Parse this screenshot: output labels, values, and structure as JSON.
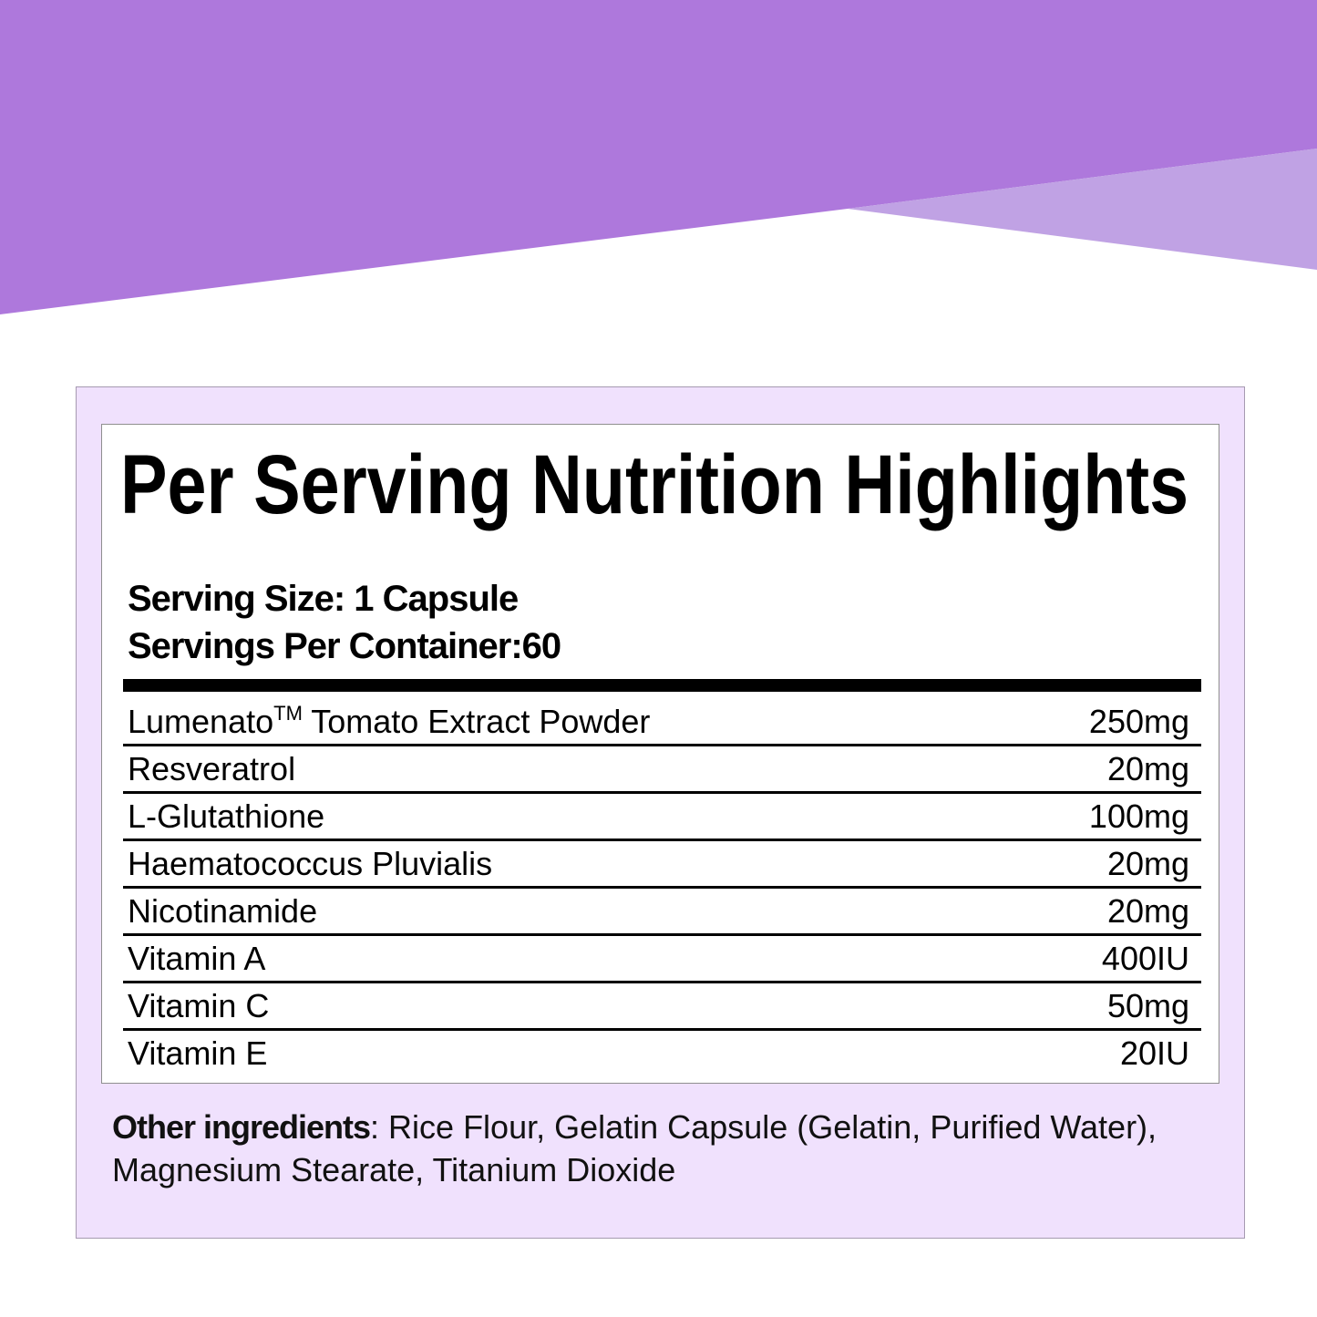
{
  "colors": {
    "banner_primary": "#ae78dc",
    "banner_secondary": "#c0a2e4",
    "panel_background": "#f0e1fd"
  },
  "title": "Per Serving Nutrition Highlights",
  "serving": {
    "size": "Serving Size: 1 Capsule",
    "per_container": "Servings Per Container:60"
  },
  "ingredients": [
    {
      "name": "Lumenato",
      "mark": "TM",
      "name_rest": " Tomato Extract Powder",
      "amount": "250mg"
    },
    {
      "name": "Resveratrol",
      "amount": "20mg"
    },
    {
      "name": "L-Glutathione",
      "amount": "100mg"
    },
    {
      "name": "Haematococcus Pluvialis",
      "amount": "20mg"
    },
    {
      "name": "Nicotinamide",
      "amount": "20mg"
    },
    {
      "name": "Vitamin A",
      "amount": "400IU"
    },
    {
      "name": "Vitamin C",
      "amount": "50mg"
    },
    {
      "name": "Vitamin E",
      "amount": "20IU"
    }
  ],
  "other_ingredients": {
    "label": "Other ingredients",
    "text": ": Rice Flour, Gelatin Capsule (Gelatin, Purified Water), Magnesium Stearate, Titanium Dioxide"
  }
}
